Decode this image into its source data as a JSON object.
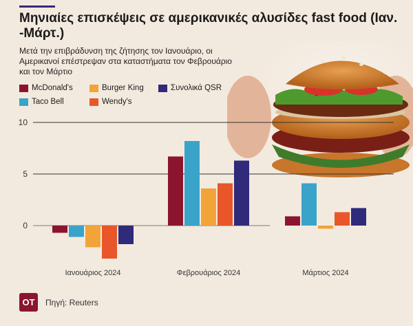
{
  "header": {
    "title": "Μηνιαίες επισκέψεις σε αμερικανικές αλυσίδες fast food (Ιαν. -Μάρτ.)",
    "subtitle": "Μετά την επιβράδυνση της ζήτησης τον Ιανουάριο, οι Αμερικανοί επέστρεψαν στα καταστήματα τον Φεβρουάριο και τον Μάρτιο"
  },
  "footer": {
    "logo_text": "ΟΤ",
    "source": "Πηγή: Reuters"
  },
  "colors": {
    "background": "#f3eadf",
    "logo": "#8b1530"
  },
  "chart_data": {
    "type": "bar",
    "categories": [
      "Ιανουάριος 2024",
      "Φεβρουάριος 2024",
      "Μάρτιος 2024"
    ],
    "series": [
      {
        "name": "McDonald's",
        "color": "#8b1530",
        "values": [
          -0.7,
          6.7,
          0.9
        ]
      },
      {
        "name": "Taco Bell",
        "color": "#3aa3c9",
        "values": [
          -1.1,
          8.2,
          4.1
        ]
      },
      {
        "name": "Burger King",
        "color": "#f2a33a",
        "values": [
          -2.1,
          3.6,
          -0.3
        ]
      },
      {
        "name": "Wendy's",
        "color": "#e8562a",
        "values": [
          -3.2,
          4.1,
          1.3
        ]
      },
      {
        "name": "Συνολικά QSR",
        "color": "#2f2a7a",
        "values": [
          -1.8,
          6.3,
          1.7
        ]
      }
    ],
    "yticks": [
      0,
      5,
      10
    ],
    "ylim": [
      -4,
      10.5
    ],
    "grid": true,
    "legend_position": "top-left"
  }
}
